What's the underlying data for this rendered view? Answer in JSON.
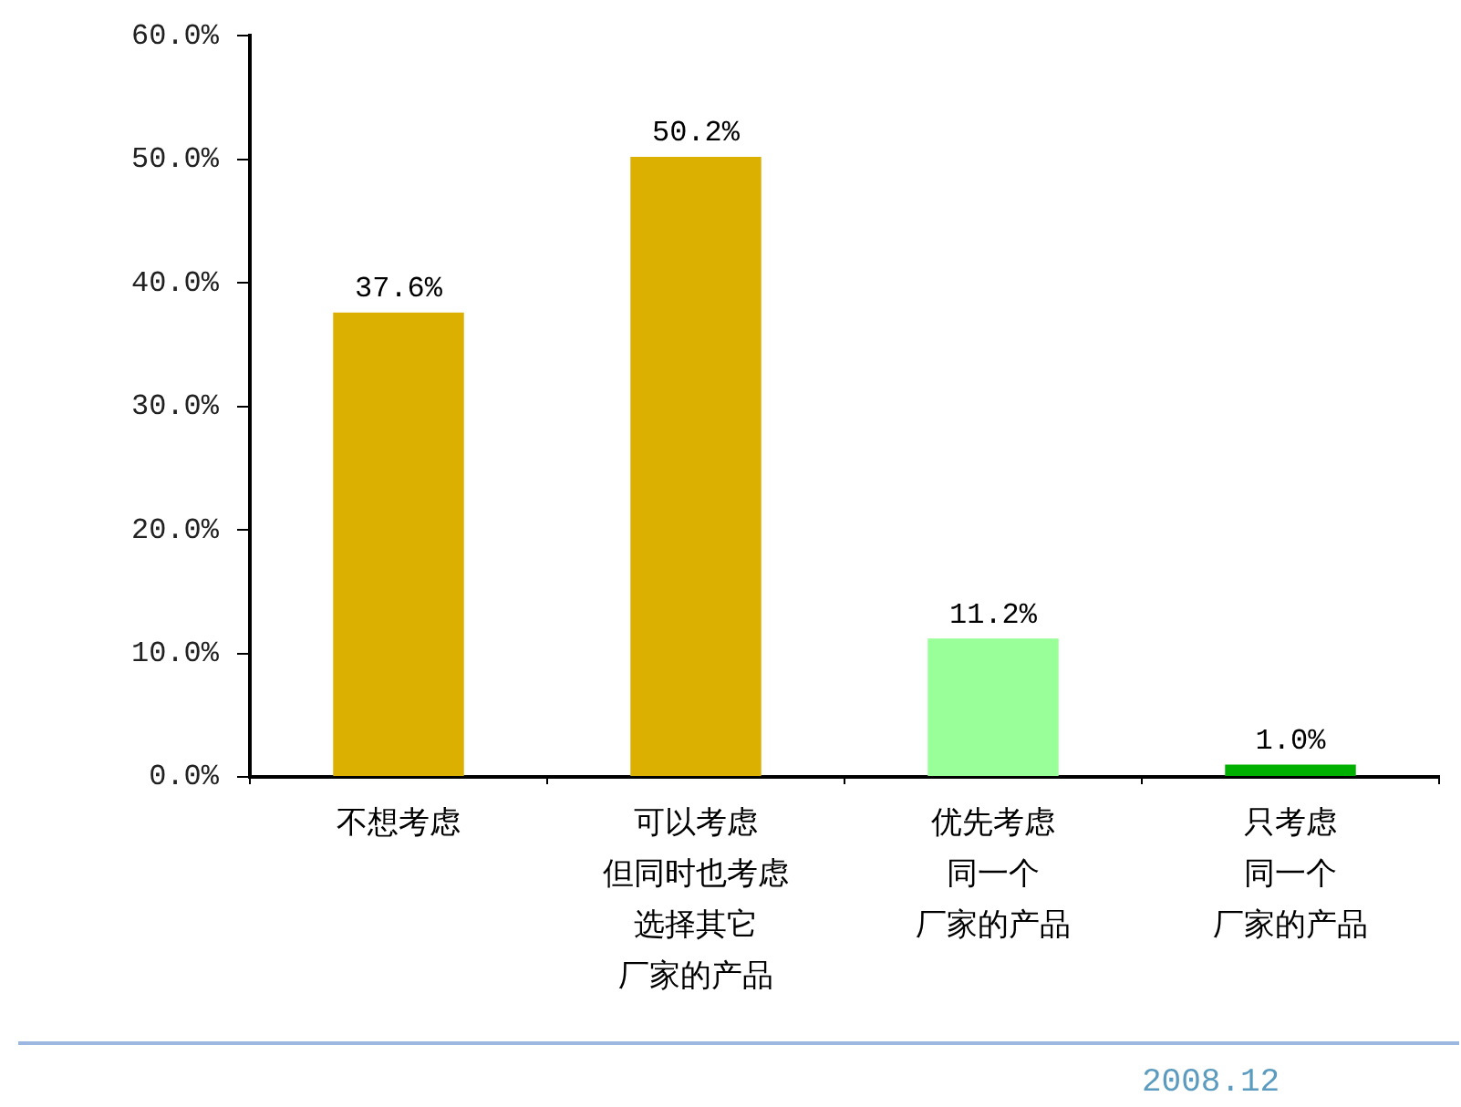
{
  "chart_data": {
    "type": "bar",
    "categories": [
      "不想考虑",
      "可以考虑但同时也考虑选择其它厂家的产品",
      "优先考虑同一个厂家的产品",
      "只考虑同一个厂家的产品"
    ],
    "values": [
      37.6,
      50.2,
      11.2,
      1.0
    ],
    "colors": [
      "#dcb000",
      "#dcb000",
      "#99ff99",
      "#00b000"
    ],
    "value_labels": [
      "37.6%",
      "50.2%",
      "11.2%",
      "1.0%"
    ],
    "ylim": [
      0,
      60
    ],
    "yticks": [
      {
        "value": 0,
        "label": "0.0%"
      },
      {
        "value": 10,
        "label": "10.0%"
      },
      {
        "value": 20,
        "label": "20.0%"
      },
      {
        "value": 30,
        "label": "30.0%"
      },
      {
        "value": 40,
        "label": "40.0%"
      },
      {
        "value": 50,
        "label": "50.0%"
      },
      {
        "value": 60,
        "label": "60.0%"
      }
    ],
    "grid": false,
    "legend": false,
    "annotations": [
      "2008.12"
    ]
  }
}
